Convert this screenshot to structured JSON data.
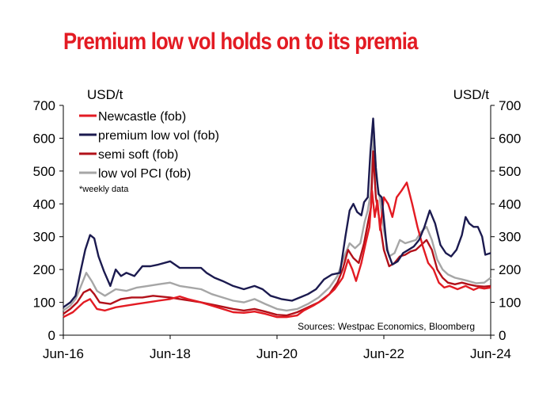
{
  "title": "Premium low vol holds on to its premia",
  "chart_data": {
    "type": "line",
    "title": "Premium low vol holds on to its premia",
    "y_left_label": "USD/t",
    "y_right_label": "USD/t",
    "ylim": [
      0,
      700
    ],
    "yticks": [
      0,
      100,
      200,
      300,
      400,
      500,
      600,
      700
    ],
    "xlim": [
      2016.42,
      2024.42
    ],
    "xticks": [
      {
        "x": 2016.42,
        "label": "Jun-16"
      },
      {
        "x": 2018.42,
        "label": "Jun-18"
      },
      {
        "x": 2020.42,
        "label": "Jun-20"
      },
      {
        "x": 2022.42,
        "label": "Jun-22"
      },
      {
        "x": 2024.42,
        "label": "Jun-24"
      }
    ],
    "note": "*weekly data",
    "source": "Sources: Westpac Economics, Bloomberg",
    "legend_position": "top-left",
    "grid": false,
    "series": [
      {
        "name": "Newcastle (fob)",
        "color": "#e31b23",
        "points": [
          [
            2016.42,
            55
          ],
          [
            2016.6,
            70
          ],
          [
            2016.8,
            100
          ],
          [
            2016.92,
            110
          ],
          [
            2017.05,
            80
          ],
          [
            2017.2,
            75
          ],
          [
            2017.4,
            85
          ],
          [
            2017.6,
            90
          ],
          [
            2017.8,
            95
          ],
          [
            2018.0,
            100
          ],
          [
            2018.2,
            105
          ],
          [
            2018.42,
            110
          ],
          [
            2018.6,
            118
          ],
          [
            2018.75,
            110
          ],
          [
            2019.0,
            100
          ],
          [
            2019.2,
            90
          ],
          [
            2019.4,
            80
          ],
          [
            2019.6,
            70
          ],
          [
            2019.8,
            68
          ],
          [
            2020.0,
            72
          ],
          [
            2020.2,
            65
          ],
          [
            2020.42,
            55
          ],
          [
            2020.6,
            55
          ],
          [
            2020.8,
            60
          ],
          [
            2020.92,
            75
          ],
          [
            2021.1,
            90
          ],
          [
            2021.3,
            110
          ],
          [
            2021.5,
            140
          ],
          [
            2021.65,
            175
          ],
          [
            2021.75,
            230
          ],
          [
            2021.83,
            200
          ],
          [
            2021.9,
            165
          ],
          [
            2022.0,
            220
          ],
          [
            2022.08,
            280
          ],
          [
            2022.15,
            330
          ],
          [
            2022.2,
            440
          ],
          [
            2022.25,
            360
          ],
          [
            2022.3,
            410
          ],
          [
            2022.35,
            320
          ],
          [
            2022.42,
            420
          ],
          [
            2022.5,
            400
          ],
          [
            2022.58,
            360
          ],
          [
            2022.66,
            420
          ],
          [
            2022.75,
            440
          ],
          [
            2022.85,
            465
          ],
          [
            2022.95,
            400
          ],
          [
            2023.05,
            330
          ],
          [
            2023.15,
            270
          ],
          [
            2023.25,
            220
          ],
          [
            2023.35,
            200
          ],
          [
            2023.45,
            160
          ],
          [
            2023.55,
            145
          ],
          [
            2023.65,
            150
          ],
          [
            2023.8,
            140
          ],
          [
            2023.95,
            150
          ],
          [
            2024.1,
            138
          ],
          [
            2024.2,
            145
          ],
          [
            2024.3,
            142
          ],
          [
            2024.42,
            145
          ]
        ]
      },
      {
        "name": "premium low vol (fob)",
        "color": "#1b1a4f",
        "points": [
          [
            2016.42,
            85
          ],
          [
            2016.55,
            100
          ],
          [
            2016.65,
            120
          ],
          [
            2016.75,
            200
          ],
          [
            2016.83,
            260
          ],
          [
            2016.92,
            305
          ],
          [
            2017.0,
            295
          ],
          [
            2017.08,
            240
          ],
          [
            2017.18,
            195
          ],
          [
            2017.3,
            150
          ],
          [
            2017.4,
            200
          ],
          [
            2017.5,
            180
          ],
          [
            2017.6,
            190
          ],
          [
            2017.75,
            180
          ],
          [
            2017.9,
            210
          ],
          [
            2018.05,
            210
          ],
          [
            2018.2,
            215
          ],
          [
            2018.42,
            225
          ],
          [
            2018.6,
            205
          ],
          [
            2018.8,
            205
          ],
          [
            2019.0,
            205
          ],
          [
            2019.1,
            190
          ],
          [
            2019.25,
            175
          ],
          [
            2019.4,
            165
          ],
          [
            2019.6,
            150
          ],
          [
            2019.8,
            140
          ],
          [
            2020.0,
            150
          ],
          [
            2020.15,
            140
          ],
          [
            2020.3,
            120
          ],
          [
            2020.5,
            110
          ],
          [
            2020.7,
            105
          ],
          [
            2020.85,
            115
          ],
          [
            2021.0,
            125
          ],
          [
            2021.15,
            140
          ],
          [
            2021.3,
            170
          ],
          [
            2021.45,
            185
          ],
          [
            2021.6,
            190
          ],
          [
            2021.7,
            300
          ],
          [
            2021.78,
            380
          ],
          [
            2021.85,
            400
          ],
          [
            2021.92,
            375
          ],
          [
            2022.0,
            365
          ],
          [
            2022.05,
            405
          ],
          [
            2022.12,
            420
          ],
          [
            2022.17,
            560
          ],
          [
            2022.22,
            660
          ],
          [
            2022.27,
            510
          ],
          [
            2022.32,
            430
          ],
          [
            2022.38,
            420
          ],
          [
            2022.48,
            260
          ],
          [
            2022.58,
            215
          ],
          [
            2022.68,
            225
          ],
          [
            2022.78,
            250
          ],
          [
            2022.88,
            260
          ],
          [
            2022.98,
            270
          ],
          [
            2023.08,
            290
          ],
          [
            2023.18,
            330
          ],
          [
            2023.28,
            380
          ],
          [
            2023.38,
            340
          ],
          [
            2023.48,
            275
          ],
          [
            2023.58,
            250
          ],
          [
            2023.68,
            240
          ],
          [
            2023.78,
            260
          ],
          [
            2023.88,
            305
          ],
          [
            2023.95,
            360
          ],
          [
            2024.02,
            340
          ],
          [
            2024.1,
            330
          ],
          [
            2024.18,
            330
          ],
          [
            2024.26,
            300
          ],
          [
            2024.32,
            245
          ],
          [
            2024.42,
            250
          ]
        ]
      },
      {
        "name": "semi soft (fob)",
        "color": "#b2111a",
        "points": [
          [
            2016.42,
            65
          ],
          [
            2016.55,
            80
          ],
          [
            2016.68,
            100
          ],
          [
            2016.8,
            130
          ],
          [
            2016.92,
            140
          ],
          [
            2017.0,
            125
          ],
          [
            2017.1,
            100
          ],
          [
            2017.3,
            95
          ],
          [
            2017.5,
            110
          ],
          [
            2017.7,
            115
          ],
          [
            2017.9,
            115
          ],
          [
            2018.1,
            120
          ],
          [
            2018.42,
            115
          ],
          [
            2018.6,
            110
          ],
          [
            2018.8,
            105
          ],
          [
            2019.0,
            100
          ],
          [
            2019.3,
            90
          ],
          [
            2019.6,
            80
          ],
          [
            2019.8,
            75
          ],
          [
            2020.0,
            80
          ],
          [
            2020.2,
            72
          ],
          [
            2020.42,
            62
          ],
          [
            2020.6,
            60
          ],
          [
            2020.8,
            70
          ],
          [
            2021.0,
            85
          ],
          [
            2021.2,
            100
          ],
          [
            2021.4,
            125
          ],
          [
            2021.55,
            160
          ],
          [
            2021.65,
            200
          ],
          [
            2021.75,
            260
          ],
          [
            2021.85,
            235
          ],
          [
            2021.95,
            220
          ],
          [
            2022.05,
            280
          ],
          [
            2022.12,
            340
          ],
          [
            2022.18,
            390
          ],
          [
            2022.22,
            560
          ],
          [
            2022.27,
            420
          ],
          [
            2022.33,
            360
          ],
          [
            2022.42,
            260
          ],
          [
            2022.52,
            210
          ],
          [
            2022.62,
            220
          ],
          [
            2022.72,
            240
          ],
          [
            2022.82,
            245
          ],
          [
            2022.92,
            255
          ],
          [
            2023.02,
            260
          ],
          [
            2023.12,
            275
          ],
          [
            2023.22,
            290
          ],
          [
            2023.32,
            260
          ],
          [
            2023.42,
            200
          ],
          [
            2023.52,
            175
          ],
          [
            2023.62,
            160
          ],
          [
            2023.75,
            155
          ],
          [
            2023.88,
            160
          ],
          [
            2024.0,
            155
          ],
          [
            2024.15,
            150
          ],
          [
            2024.3,
            148
          ],
          [
            2024.42,
            150
          ]
        ]
      },
      {
        "name": "low vol PCI (fob)",
        "color": "#a6a6a6",
        "points": [
          [
            2016.42,
            75
          ],
          [
            2016.55,
            90
          ],
          [
            2016.65,
            110
          ],
          [
            2016.75,
            150
          ],
          [
            2016.85,
            190
          ],
          [
            2016.95,
            165
          ],
          [
            2017.05,
            135
          ],
          [
            2017.2,
            120
          ],
          [
            2017.4,
            140
          ],
          [
            2017.6,
            135
          ],
          [
            2017.8,
            145
          ],
          [
            2018.0,
            150
          ],
          [
            2018.2,
            155
          ],
          [
            2018.42,
            160
          ],
          [
            2018.6,
            150
          ],
          [
            2018.8,
            145
          ],
          [
            2019.0,
            140
          ],
          [
            2019.2,
            125
          ],
          [
            2019.4,
            115
          ],
          [
            2019.6,
            105
          ],
          [
            2019.8,
            100
          ],
          [
            2020.0,
            110
          ],
          [
            2020.2,
            95
          ],
          [
            2020.42,
            80
          ],
          [
            2020.6,
            75
          ],
          [
            2020.8,
            80
          ],
          [
            2021.0,
            95
          ],
          [
            2021.2,
            115
          ],
          [
            2021.4,
            145
          ],
          [
            2021.55,
            180
          ],
          [
            2021.68,
            240
          ],
          [
            2021.78,
            280
          ],
          [
            2021.88,
            265
          ],
          [
            2021.98,
            280
          ],
          [
            2022.06,
            345
          ],
          [
            2022.12,
            380
          ],
          [
            2022.18,
            440
          ],
          [
            2022.23,
            630
          ],
          [
            2022.28,
            480
          ],
          [
            2022.34,
            420
          ],
          [
            2022.42,
            320
          ],
          [
            2022.52,
            240
          ],
          [
            2022.62,
            250
          ],
          [
            2022.72,
            290
          ],
          [
            2022.82,
            280
          ],
          [
            2022.92,
            285
          ],
          [
            2023.02,
            290
          ],
          [
            2023.12,
            315
          ],
          [
            2023.22,
            330
          ],
          [
            2023.32,
            290
          ],
          [
            2023.42,
            230
          ],
          [
            2023.52,
            200
          ],
          [
            2023.62,
            185
          ],
          [
            2023.75,
            175
          ],
          [
            2023.88,
            170
          ],
          [
            2024.0,
            165
          ],
          [
            2024.15,
            158
          ],
          [
            2024.3,
            160
          ],
          [
            2024.42,
            175
          ]
        ]
      }
    ]
  }
}
